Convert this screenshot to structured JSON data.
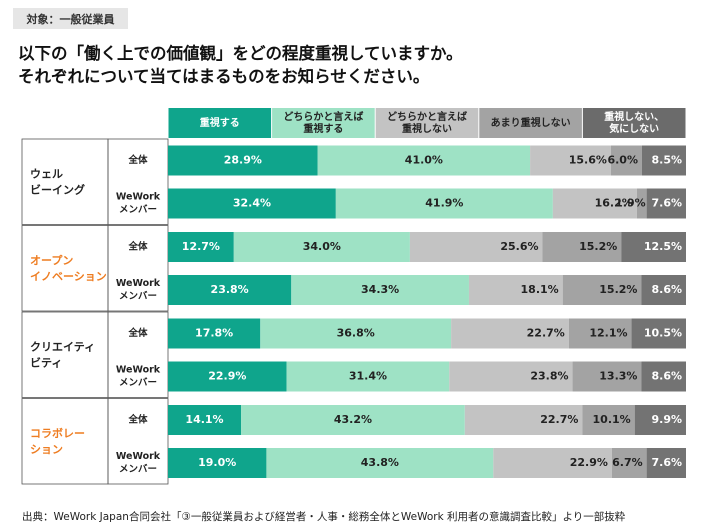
{
  "header": {
    "tag": "対象：一般従業員",
    "question_line1": "以下の「働く上での価値観」をどの程度重視していますか。",
    "question_line2": "それぞれについて当てはまるものをお知らせください。"
  },
  "source": "出典：WeWork Japan合同会社「③一般従業員および経営者・人事・総務全体とWeWork 利用者の意識調査比較」より一部抜粋",
  "chart_data": {
    "type": "bar",
    "orientation": "horizontal",
    "stacked": "percent",
    "xlim": [
      0,
      100
    ],
    "legend_position": "top",
    "series": [
      {
        "label_lines": [
          "重視する"
        ],
        "color": "#0fa58c",
        "header_color": "#0fa58c"
      },
      {
        "label_lines": [
          "どちらかと言えば",
          "重視する"
        ],
        "color": "#9ee2c5",
        "header_color": "#9ee2c5"
      },
      {
        "label_lines": [
          "どちらかと言えば",
          "重視しない"
        ],
        "color": "#c3c3c3",
        "header_color": "#c3c3c3"
      },
      {
        "label_lines": [
          "あまり重視しない"
        ],
        "color": "#a3a3a3",
        "header_color": "#a3a3a3"
      },
      {
        "label_lines": [
          "重視しない、",
          "気にしない"
        ],
        "color": "#737373",
        "header_color": "#6b6b6b"
      }
    ],
    "groups": [
      {
        "label_lines": [
          "ウェル",
          "ビーイング"
        ],
        "color": "#222222"
      },
      {
        "label_lines": [
          "オープン",
          "イノベーション"
        ],
        "color": "#ee7d22"
      },
      {
        "label_lines": [
          "クリエイティ",
          "ビティ"
        ],
        "color": "#222222"
      },
      {
        "label_lines": [
          "コラボレー",
          "ション"
        ],
        "color": "#ee7d22"
      }
    ],
    "row_labels": [
      [
        "全体"
      ],
      [
        "WeWork",
        "メンバー"
      ]
    ],
    "rows": [
      {
        "group": 0,
        "row": 0,
        "values": [
          28.9,
          41.0,
          15.6,
          6.0,
          8.5
        ],
        "labels": [
          "28.9%",
          "41.0%",
          "15.6%",
          "6.0%",
          "8.5%"
        ]
      },
      {
        "group": 0,
        "row": 1,
        "values": [
          32.4,
          41.9,
          16.2,
          1.9,
          7.6
        ],
        "labels": [
          "32.4%",
          "41.9%",
          "16.2%",
          "1.9%",
          "7.6%"
        ]
      },
      {
        "group": 1,
        "row": 0,
        "values": [
          12.7,
          34.0,
          25.6,
          15.2,
          12.5
        ],
        "labels": [
          "12.7%",
          "34.0%",
          "25.6%",
          "15.2%",
          "12.5%"
        ]
      },
      {
        "group": 1,
        "row": 1,
        "values": [
          23.8,
          34.3,
          18.1,
          15.2,
          8.6
        ],
        "labels": [
          "23.8%",
          "34.3%",
          "18.1%",
          "15.2%",
          "8.6%"
        ]
      },
      {
        "group": 2,
        "row": 0,
        "values": [
          17.8,
          36.8,
          22.7,
          12.1,
          10.5
        ],
        "labels": [
          "17.8%",
          "36.8%",
          "22.7%",
          "12.1%",
          "10.5%"
        ]
      },
      {
        "group": 2,
        "row": 1,
        "values": [
          22.9,
          31.4,
          23.8,
          13.3,
          8.6
        ],
        "labels": [
          "22.9%",
          "31.4%",
          "23.8%",
          "13.3%",
          "8.6%"
        ]
      },
      {
        "group": 3,
        "row": 0,
        "values": [
          14.1,
          43.2,
          22.7,
          10.1,
          9.9
        ],
        "labels": [
          "14.1%",
          "43.2%",
          "22.7%",
          "10.1%",
          "9.9%"
        ]
      },
      {
        "group": 3,
        "row": 1,
        "values": [
          19.0,
          43.8,
          22.9,
          6.7,
          7.6
        ],
        "labels": [
          "19.0%",
          "43.8%",
          "22.9%",
          "6.7%",
          "7.6%"
        ]
      }
    ]
  }
}
